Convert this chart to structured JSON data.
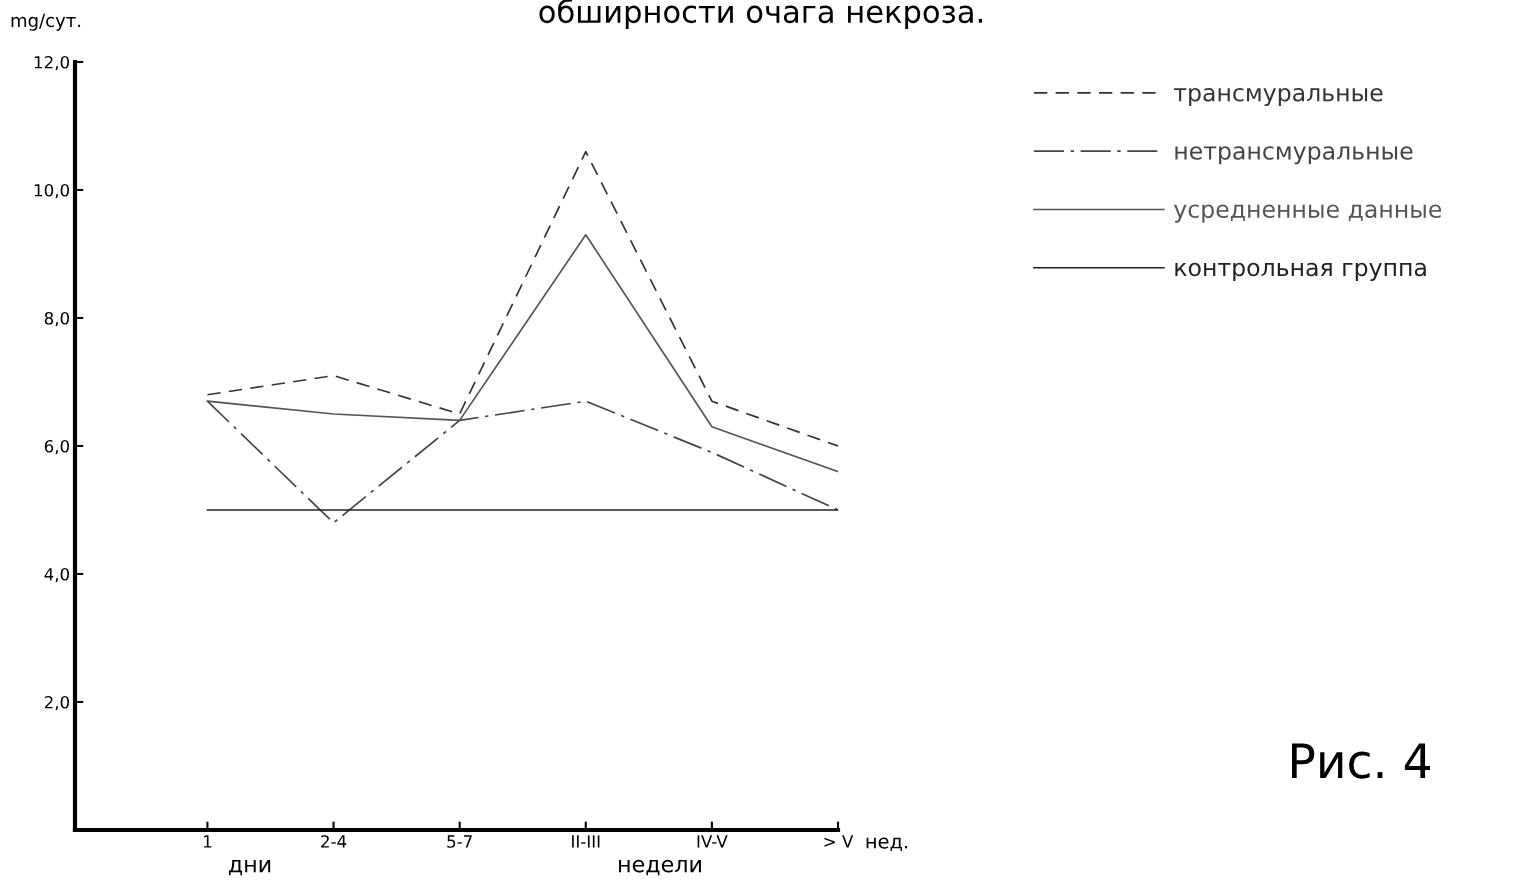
{
  "chart_data": {
    "type": "line",
    "title": "обширности очага некроза.",
    "ylabel": "mg/сут.",
    "categories": [
      "1",
      "2-4",
      "5-7",
      "II-III",
      "IV-V",
      "> V"
    ],
    "series": [
      {
        "name": "трансмуральные",
        "color": "#333333",
        "line_style": "dashed",
        "values": [
          6.8,
          7.1,
          6.5,
          10.6,
          6.7,
          6.0
        ]
      },
      {
        "name": "нетрансмуральные",
        "color": "#444444",
        "line_style": "dashdot",
        "values": [
          6.7,
          4.8,
          6.4,
          6.7,
          5.9,
          5.0
        ]
      },
      {
        "name": "усредненные данные",
        "color": "#555555",
        "line_style": "solid",
        "values": [
          6.7,
          6.5,
          6.4,
          9.3,
          6.3,
          5.6
        ]
      },
      {
        "name": "контрольная группа",
        "color": "#222222",
        "line_style": "solid",
        "values": [
          5.0,
          5.0,
          5.0,
          5.0,
          5.0,
          5.0
        ]
      }
    ],
    "ylim": [
      0,
      12
    ],
    "yticks": [
      {
        "value": 2,
        "label": "2,0"
      },
      {
        "value": 4,
        "label": "4,0"
      },
      {
        "value": 6,
        "label": "6,0"
      },
      {
        "value": 8,
        "label": "8,0"
      },
      {
        "value": 10,
        "label": "10,0"
      },
      {
        "value": 12,
        "label": "12,0"
      }
    ],
    "grid": false,
    "legend": "top right",
    "marker": "none",
    "annotations": [
      "нед.",
      "дни",
      "недели",
      "Рис. 4"
    ]
  }
}
